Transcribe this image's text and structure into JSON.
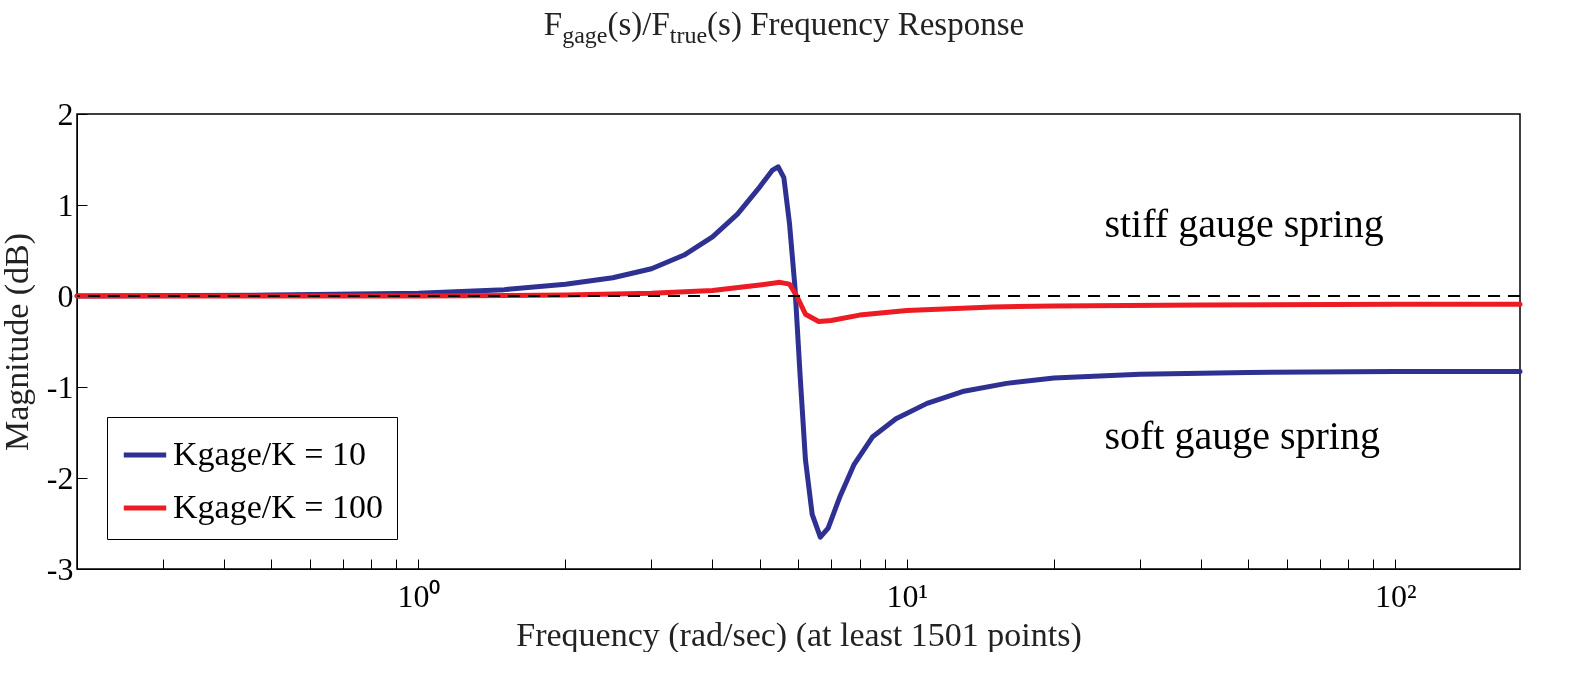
{
  "chart_data": {
    "type": "line",
    "title": "F$_{gage}$(s)/F$_{true}$(s) Frequency Response",
    "xlabel": "Frequency (rad/sec) (at least 1501 points)",
    "ylabel": "Magnitude (dB)",
    "log": "x",
    "xlim": [
      0.2,
      180
    ],
    "ylim": [
      -3,
      2
    ],
    "yticks": [
      -3,
      -2,
      -1,
      0,
      1,
      2
    ],
    "xticks": [
      {
        "value": 0.2,
        "label": null
      },
      {
        "value": 0.3,
        "label": null
      },
      {
        "value": 0.4,
        "label": null
      },
      {
        "value": 0.5,
        "label": null
      },
      {
        "value": 0.6,
        "label": null
      },
      {
        "value": 0.7,
        "label": null
      },
      {
        "value": 0.8,
        "label": null
      },
      {
        "value": 0.9,
        "label": null
      },
      {
        "value": 1,
        "label": "10⁰"
      },
      {
        "value": 2,
        "label": null
      },
      {
        "value": 3,
        "label": null
      },
      {
        "value": 4,
        "label": null
      },
      {
        "value": 5,
        "label": null
      },
      {
        "value": 6,
        "label": null
      },
      {
        "value": 7,
        "label": null
      },
      {
        "value": 8,
        "label": null
      },
      {
        "value": 9,
        "label": null
      },
      {
        "value": 10,
        "label": "10¹"
      },
      {
        "value": 20,
        "label": null
      },
      {
        "value": 30,
        "label": null
      },
      {
        "value": 40,
        "label": null
      },
      {
        "value": 50,
        "label": null
      },
      {
        "value": 60,
        "label": null
      },
      {
        "value": 70,
        "label": null
      },
      {
        "value": 80,
        "label": null
      },
      {
        "value": 90,
        "label": null
      },
      {
        "value": 100,
        "label": "10²"
      }
    ],
    "grid": false,
    "legend": "bottom left",
    "line_style": "solid",
    "marker": "none",
    "series": [
      {
        "name": "Kgage/K = 10",
        "color": "#2e3192",
        "x": [
          0.2,
          0.5,
          1,
          1.5,
          2,
          2.5,
          3,
          3.5,
          4,
          4.5,
          5,
          5.3,
          5.45,
          5.6,
          5.75,
          5.9,
          6.05,
          6.2,
          6.4,
          6.65,
          6.9,
          7.3,
          7.8,
          8.5,
          9.5,
          11,
          13,
          16,
          20,
          30,
          50,
          100,
          180
        ],
        "values": [
          0,
          0.01,
          0.03,
          0.07,
          0.13,
          0.2,
          0.3,
          0.45,
          0.65,
          0.9,
          1.2,
          1.38,
          1.42,
          1.3,
          0.8,
          0.1,
          -0.9,
          -1.8,
          -2.4,
          -2.65,
          -2.55,
          -2.2,
          -1.85,
          -1.55,
          -1.35,
          -1.18,
          -1.05,
          -0.96,
          -0.9,
          -0.86,
          -0.84,
          -0.83,
          -0.83
        ]
      },
      {
        "name": "Kgage/K = 100",
        "color": "#ed1c24",
        "x": [
          0.2,
          1,
          2,
          3,
          4,
          5,
          5.5,
          5.75,
          5.95,
          6.2,
          6.6,
          7,
          8,
          10,
          15,
          20,
          40,
          100,
          180
        ],
        "values": [
          0,
          0,
          0.01,
          0.03,
          0.06,
          0.12,
          0.15,
          0.13,
          0,
          -0.2,
          -0.28,
          -0.27,
          -0.21,
          -0.16,
          -0.12,
          -0.11,
          -0.1,
          -0.09,
          -0.09
        ]
      }
    ],
    "ref_lines": [
      {
        "axis": "y",
        "value": 0,
        "label": null,
        "color": "#000000",
        "line_style": "dashed"
      }
    ],
    "annotations": [
      "stiff gauge spring",
      "soft gauge spring"
    ]
  }
}
